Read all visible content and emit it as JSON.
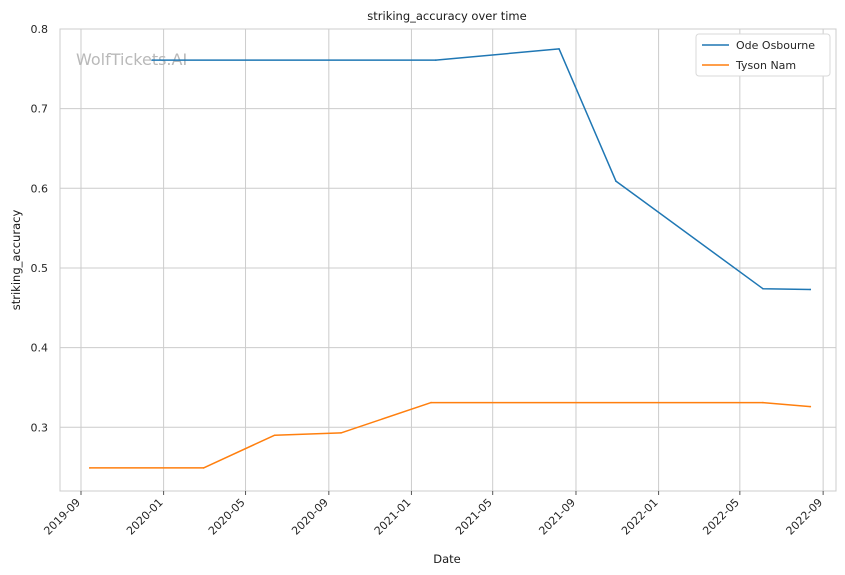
{
  "chart_data": {
    "type": "line",
    "title": "striking_accuracy over time",
    "xlabel": "Date",
    "ylabel": "striking_accuracy",
    "xlim": [
      "2019-08-01",
      "2022-09-20"
    ],
    "ylim": [
      0.22,
      0.8
    ],
    "x_ticks": [
      "2019-09",
      "2020-01",
      "2020-05",
      "2020-09",
      "2021-01",
      "2021-05",
      "2021-09",
      "2022-01",
      "2022-05",
      "2022-09"
    ],
    "y_ticks": [
      "0.3",
      "0.4",
      "0.5",
      "0.6",
      "0.7",
      "0.8"
    ],
    "grid": true,
    "legend_position": "top-right",
    "watermark": "WolfTickets.AI",
    "series": [
      {
        "name": "Ode Osbourne",
        "color": "#1f77b4",
        "points": [
          {
            "x": "2019-12-15",
            "y": 0.761
          },
          {
            "x": "2021-02-06",
            "y": 0.761
          },
          {
            "x": "2021-08-07",
            "y": 0.775
          },
          {
            "x": "2021-10-30",
            "y": 0.609
          },
          {
            "x": "2022-06-04",
            "y": 0.474
          },
          {
            "x": "2022-08-13",
            "y": 0.473
          }
        ]
      },
      {
        "name": "Tyson Nam",
        "color": "#ff7f0e",
        "points": [
          {
            "x": "2019-09-14",
            "y": 0.249
          },
          {
            "x": "2020-02-29",
            "y": 0.249
          },
          {
            "x": "2020-06-13",
            "y": 0.29
          },
          {
            "x": "2020-09-19",
            "y": 0.293
          },
          {
            "x": "2021-01-30",
            "y": 0.331
          },
          {
            "x": "2022-06-04",
            "y": 0.331
          },
          {
            "x": "2022-08-13",
            "y": 0.326
          }
        ]
      }
    ]
  }
}
